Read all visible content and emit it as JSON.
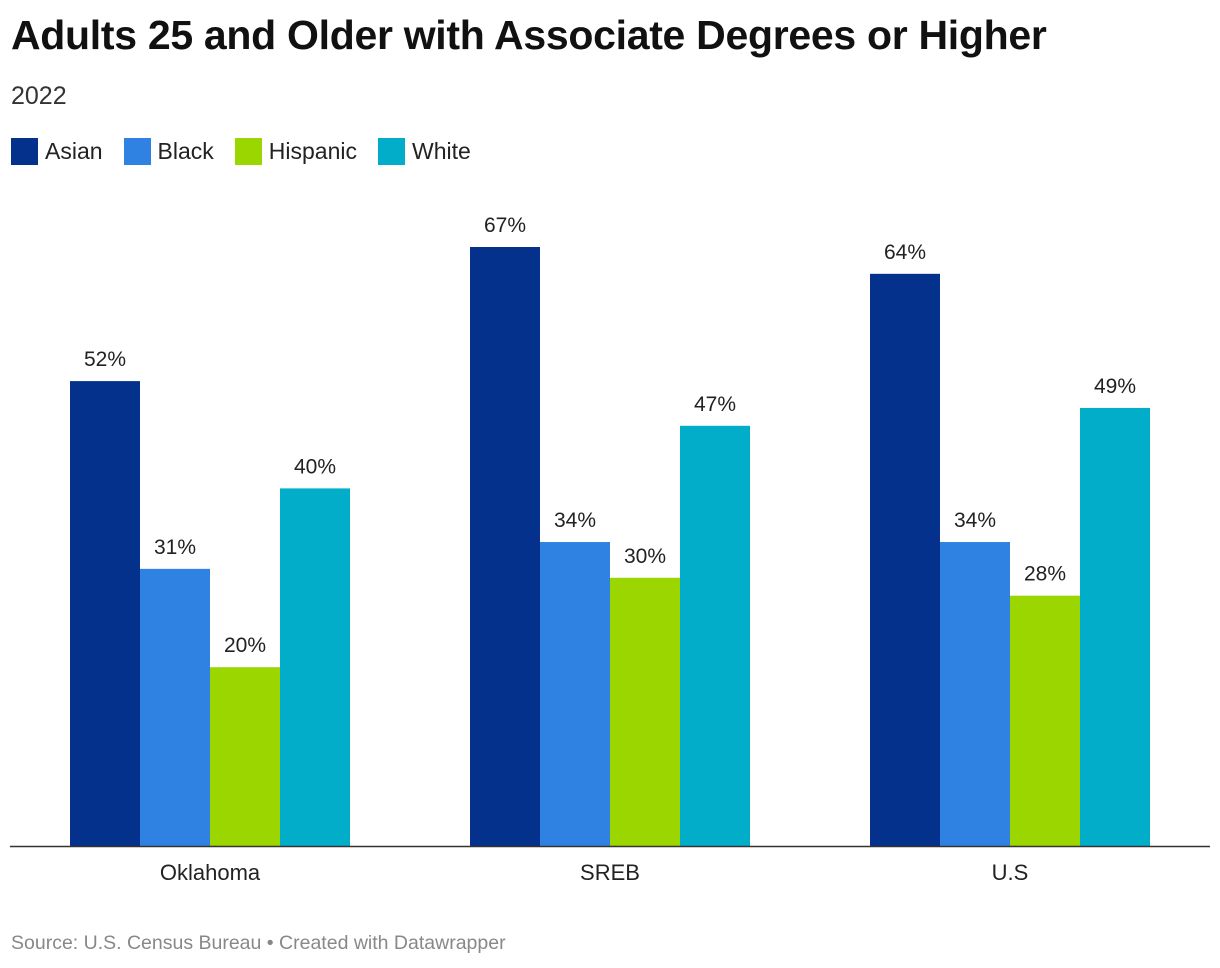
{
  "chart_data": {
    "type": "bar",
    "title": "Adults 25 and Older with Associate Degrees or Higher",
    "subtitle": "2022",
    "categories": [
      "Oklahoma",
      "SREB",
      "U.S"
    ],
    "series": [
      {
        "name": "Asian",
        "color": "#03318c",
        "values": [
          52,
          67,
          64
        ]
      },
      {
        "name": "Black",
        "color": "#3082e2",
        "values": [
          31,
          34,
          34
        ]
      },
      {
        "name": "Hispanic",
        "color": "#9bd600",
        "values": [
          20,
          30,
          28
        ]
      },
      {
        "name": "White",
        "color": "#01adc8",
        "values": [
          40,
          47,
          49
        ]
      }
    ],
    "value_suffix": "%",
    "ylim": [
      0,
      67
    ],
    "xlabel": "",
    "ylabel": "",
    "grid": false,
    "legend_position": "top-left"
  },
  "footer": {
    "source": "Source: U.S. Census Bureau • Created with Datawrapper"
  }
}
